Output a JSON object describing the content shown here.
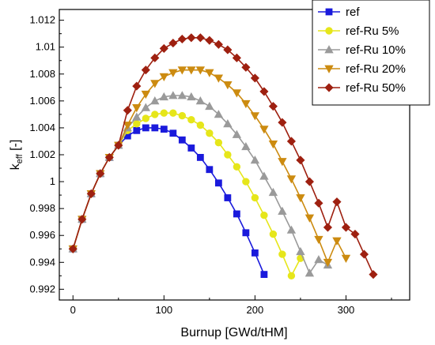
{
  "chart_data": {
    "type": "line",
    "xlabel": "Burnup [GWd/tHM]",
    "ylabel": {
      "main": "k",
      "sub": "eff",
      "suffix": " [-]"
    },
    "xlim": [
      -15,
      370
    ],
    "ylim": [
      0.9912,
      1.0128
    ],
    "xticks": [
      0,
      100,
      200,
      300
    ],
    "yticks": [
      0.992,
      0.994,
      0.996,
      0.998,
      1,
      1.002,
      1.004,
      1.006,
      1.008,
      1.01,
      1.012
    ],
    "ytick_labels": [
      "0.992",
      "0.994",
      "0.996",
      "0.998",
      "1",
      "1.002",
      "1.004",
      "1.006",
      "1.008",
      "1.01",
      "1.012"
    ],
    "xtick_labels": [
      "0",
      "100",
      "200",
      "300"
    ],
    "legend_position": "top-right",
    "series": [
      {
        "name": "ref",
        "color": "#1a1adc",
        "marker": "square",
        "x": [
          0,
          10,
          20,
          30,
          40,
          50,
          60,
          70,
          80,
          90,
          100,
          110,
          120,
          130,
          140,
          150,
          160,
          170,
          180,
          190,
          200,
          210
        ],
        "y": [
          0.995,
          0.9972,
          0.9991,
          1.0006,
          1.0018,
          1.0027,
          1.0034,
          1.0038,
          1.004,
          1.004,
          1.0039,
          1.0036,
          1.0031,
          1.0025,
          1.0018,
          1.0009,
          0.9999,
          0.9988,
          0.9976,
          0.9962,
          0.9947,
          0.9931
        ]
      },
      {
        "name": "ref-Ru 5%",
        "color": "#e6e61a",
        "marker": "circle",
        "x": [
          0,
          10,
          20,
          30,
          40,
          50,
          60,
          70,
          80,
          90,
          100,
          110,
          120,
          130,
          140,
          150,
          160,
          170,
          180,
          190,
          200,
          210,
          220,
          230,
          240,
          250
        ],
        "y": [
          0.995,
          0.9972,
          0.9991,
          1.0006,
          1.0018,
          1.0027,
          1.0038,
          1.0043,
          1.0047,
          1.005,
          1.0051,
          1.0051,
          1.0049,
          1.0046,
          1.0042,
          1.0036,
          1.0029,
          1.002,
          1.0011,
          1.0,
          0.9988,
          0.9975,
          0.9961,
          0.9946,
          0.993,
          0.9943
        ]
      },
      {
        "name": "ref-Ru 10%",
        "color": "#9a9a9a",
        "marker": "triangle-up",
        "x": [
          0,
          10,
          20,
          30,
          40,
          50,
          60,
          70,
          80,
          90,
          100,
          110,
          120,
          130,
          140,
          150,
          160,
          170,
          180,
          190,
          200,
          210,
          220,
          230,
          240,
          250,
          260,
          270,
          280
        ],
        "y": [
          0.995,
          0.9972,
          0.9991,
          1.0006,
          1.0018,
          1.0027,
          1.004,
          1.0048,
          1.0055,
          1.006,
          1.0063,
          1.0064,
          1.0064,
          1.0063,
          1.006,
          1.0056,
          1.005,
          1.0043,
          1.0035,
          1.0026,
          1.0016,
          1.0004,
          0.9992,
          0.9978,
          0.9964,
          0.9948,
          0.9932,
          0.9942,
          0.9938
        ]
      },
      {
        "name": "ref-Ru 20%",
        "color": "#cc8b10",
        "marker": "triangle-down",
        "x": [
          0,
          10,
          20,
          30,
          40,
          50,
          60,
          70,
          80,
          90,
          100,
          110,
          120,
          130,
          140,
          150,
          160,
          170,
          180,
          190,
          200,
          210,
          220,
          230,
          240,
          250,
          260,
          270,
          280,
          290,
          300
        ],
        "y": [
          0.995,
          0.9972,
          0.9991,
          1.0006,
          1.0018,
          1.0027,
          1.0042,
          1.0055,
          1.0065,
          1.0073,
          1.0078,
          1.0081,
          1.0083,
          1.0083,
          1.0083,
          1.0081,
          1.0077,
          1.0072,
          1.0066,
          1.0058,
          1.0049,
          1.0039,
          1.0028,
          1.0015,
          1.0002,
          0.9988,
          0.9973,
          0.9957,
          0.994,
          0.9956,
          0.9943
        ]
      },
      {
        "name": "ref-Ru 50%",
        "color": "#9e2010",
        "marker": "diamond",
        "x": [
          0,
          10,
          20,
          30,
          40,
          50,
          60,
          70,
          80,
          90,
          100,
          110,
          120,
          130,
          140,
          150,
          160,
          170,
          180,
          190,
          200,
          210,
          220,
          230,
          240,
          250,
          260,
          270,
          280,
          290,
          300,
          310,
          320,
          330
        ],
        "y": [
          0.995,
          0.9972,
          0.9991,
          1.0006,
          1.0018,
          1.0027,
          1.0053,
          1.0071,
          1.0083,
          1.0092,
          1.0099,
          1.0103,
          1.0106,
          1.0107,
          1.0107,
          1.0105,
          1.0102,
          1.0098,
          1.0092,
          1.0085,
          1.0077,
          1.0067,
          1.0056,
          1.0044,
          1.003,
          1.0016,
          1.0,
          0.9984,
          0.9966,
          0.9985,
          0.9966,
          0.9961,
          0.9946,
          0.9931
        ]
      }
    ]
  }
}
